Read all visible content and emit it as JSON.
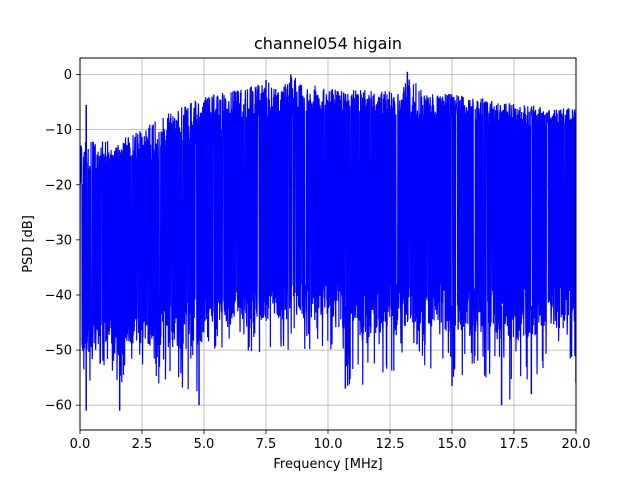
{
  "chart_data": {
    "type": "line",
    "title": "channel054 higain",
    "xlabel": "Frequency [MHz]",
    "ylabel": "PSD [dB]",
    "xlim": [
      0,
      20
    ],
    "ylim": [
      -64.5,
      3
    ],
    "grid": true,
    "x_ticks": [
      0,
      2.5,
      5,
      7.5,
      10,
      12.5,
      15,
      17.5,
      20
    ],
    "x_tick_labels": [
      "0.0",
      "2.5",
      "5.0",
      "7.5",
      "10.0",
      "12.5",
      "15.0",
      "17.5",
      "20.0"
    ],
    "y_ticks": [
      0,
      -10,
      -20,
      -30,
      -40,
      -50,
      -60
    ],
    "y_tick_labels": [
      "0",
      "−10",
      "−20",
      "−30",
      "−40",
      "−50",
      "−60"
    ],
    "series": [
      {
        "color": "#0000ff",
        "upper_envelope": {
          "x": [
            0,
            0.1,
            0.2,
            0.25,
            0.3,
            0.5,
            1.0,
            1.5,
            2.0,
            2.5,
            3.0,
            4.0,
            5.0,
            6.0,
            7.0,
            7.5,
            8.0,
            8.5,
            9.0,
            10.0,
            11.0,
            12.0,
            13.0,
            13.2,
            14.0,
            15.0,
            16.0,
            17.0,
            18.0,
            19.0,
            20.0
          ],
          "y": [
            -13,
            -12,
            -12,
            -5.5,
            -12,
            -12,
            -12,
            -12,
            -11,
            -10,
            -8,
            -6,
            -4,
            -3,
            -2,
            -1,
            -2.5,
            0,
            -1.5,
            -2.5,
            -2.5,
            -3,
            -3,
            0,
            -3.5,
            -3.5,
            -4,
            -5,
            -5.5,
            -6,
            -6
          ]
        },
        "lower_envelope": {
          "x": [
            0,
            0.25,
            0.5,
            1.0,
            1.6,
            2.0,
            3.0,
            4.8,
            5.0,
            7.5,
            9.0,
            10.0,
            10.7,
            12.0,
            13.5,
            15.0,
            16.0,
            17.0,
            18.2,
            19.0,
            20.0
          ],
          "y": [
            -53,
            -61,
            -54,
            -53,
            -61,
            -55,
            -56,
            -60,
            -50,
            -51,
            -51,
            -49,
            -57,
            -56,
            -52,
            -56,
            -53,
            -60,
            -58,
            -54,
            -52
          ]
        },
        "median_dense_band": {
          "x": [
            0,
            2.5,
            5.0,
            7.5,
            10.0,
            12.5,
            15.0,
            17.5,
            20.0
          ],
          "low": [
            -45,
            -43,
            -40,
            -38,
            -38,
            -38,
            -38,
            -38,
            -39
          ],
          "high": [
            -20,
            -18,
            -12,
            -8,
            -8,
            -8,
            -8,
            -9,
            -10
          ]
        }
      }
    ]
  }
}
